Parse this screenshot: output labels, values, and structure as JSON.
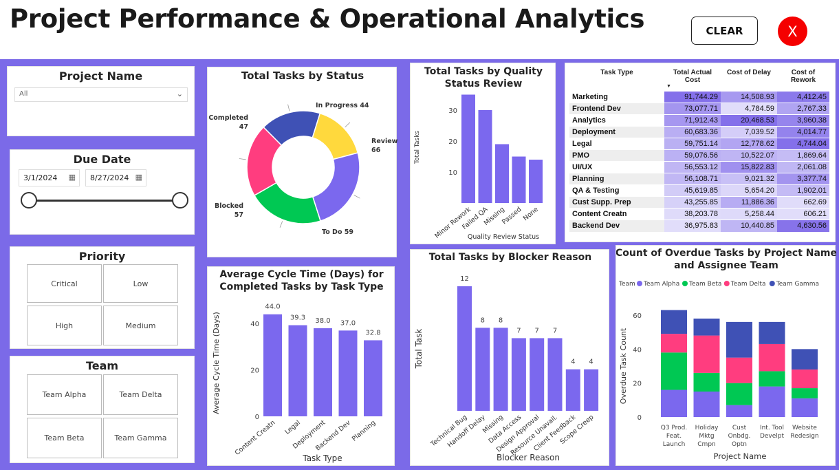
{
  "header": {
    "title": "Project Performance & Operational Analytics",
    "clear_label": "CLEAR",
    "close_label": "X"
  },
  "colors": {
    "accent": "#7b6ae8",
    "bar": "#7b68ee",
    "alpha": "#7b68ee",
    "beta": "#00c853",
    "delta": "#ff3d7f",
    "gamma": "#3f51b5",
    "close": "#f50000"
  },
  "slicers": {
    "project": {
      "title": "Project Name",
      "value": "All"
    },
    "due_date": {
      "title": "Due Date",
      "start": "3/1/2024",
      "end": "8/27/2024"
    },
    "priority": {
      "title": "Priority",
      "options": [
        "Critical",
        "Low",
        "High",
        "Medium"
      ]
    },
    "team": {
      "title": "Team",
      "options": [
        "Team Alpha",
        "Team Delta",
        "Team Beta",
        "Team Gamma"
      ]
    }
  },
  "matrix": {
    "headers": [
      "Task Type",
      "Total Actual Cost",
      "Cost of Delay",
      "Cost of Rework"
    ],
    "rows": [
      [
        "Marketing",
        "91,744.29",
        "14,508.93",
        "4,412.45"
      ],
      [
        "Frontend Dev",
        "73,077.71",
        "4,784.59",
        "2,767.33"
      ],
      [
        "Analytics",
        "71,912.43",
        "20,468.53",
        "3,960.38"
      ],
      [
        "Deployment",
        "60,683.36",
        "7,039.52",
        "4,014.77"
      ],
      [
        "Legal",
        "59,751.14",
        "12,778.62",
        "4,744.04"
      ],
      [
        "PMO",
        "59,076.56",
        "10,522.07",
        "1,869.64"
      ],
      [
        "UI/UX",
        "56,553.12",
        "15,822.83",
        "2,061.08"
      ],
      [
        "Planning",
        "56,108.71",
        "9,021.32",
        "3,377.74"
      ],
      [
        "QA & Testing",
        "45,619.85",
        "5,654.20",
        "1,902.01"
      ],
      [
        "Cust Supp. Prep",
        "43,255.85",
        "11,886.36",
        "662.69"
      ],
      [
        "Content Creatn",
        "38,203.78",
        "5,258.44",
        "606.21"
      ],
      [
        "Backend Dev",
        "36,975.83",
        "10,440.85",
        "4,630.56"
      ]
    ]
  },
  "chart_data": [
    {
      "id": "status",
      "type": "pie",
      "title": "Total Tasks by Status",
      "slices": [
        {
          "label": "In Progress",
          "value": 44,
          "color": "#ffd93d"
        },
        {
          "label": "Review",
          "value": 66,
          "color": "#7b68ee"
        },
        {
          "label": "To Do",
          "value": 59,
          "color": "#00c853"
        },
        {
          "label": "Blocked",
          "value": 57,
          "color": "#ff3d7f"
        },
        {
          "label": "Completed",
          "value": 47,
          "color": "#3f51b5"
        }
      ]
    },
    {
      "id": "quality",
      "type": "bar",
      "title": "Total Tasks by Quality Status Review",
      "xlabel": "Quality Review Status",
      "ylabel": "Total Tasks",
      "categories": [
        "Minor Rework",
        "Failed QA",
        "Missing",
        "Passed",
        "None"
      ],
      "values": [
        35,
        30,
        19,
        15,
        14
      ],
      "ylim": [
        0,
        36
      ],
      "yticks": [
        10,
        20,
        30
      ]
    },
    {
      "id": "cycle",
      "type": "bar",
      "title": "Average Cycle Time (Days) for Completed Tasks by Task Type",
      "xlabel": "Task Type",
      "ylabel": "Average Cycle Time (Days)",
      "categories": [
        "Content Creatn",
        "Legal",
        "Deployment",
        "Backend Dev",
        "Planning"
      ],
      "values": [
        44.0,
        39.3,
        38.0,
        37.0,
        32.8
      ],
      "labels": [
        "44.0",
        "39.3",
        "38.0",
        "37.0",
        "32.8"
      ],
      "ylim": [
        0,
        46
      ],
      "yticks": [
        0,
        20,
        40
      ]
    },
    {
      "id": "blocker",
      "type": "bar",
      "title": "Total Tasks by Blocker Reason",
      "xlabel": "Blocker Reason",
      "ylabel": "Total Task",
      "categories": [
        "Technical Bug",
        "Handoff Delay",
        "Missing",
        "Data Access",
        "Design Approval",
        "Resource Unavail.",
        "Client Feedback",
        "Scope Creep"
      ],
      "values": [
        12,
        8,
        8,
        7,
        7,
        7,
        4,
        4
      ],
      "ylim": [
        0,
        12
      ]
    },
    {
      "id": "overdue",
      "type": "bar",
      "stacked": true,
      "title": "Count of Overdue Tasks by Project Name and Assignee Team",
      "xlabel": "Project Name",
      "ylabel": "Overdue Task Count",
      "legend_title": "Team",
      "categories": [
        "Q3 Prod. Feat. Launch",
        "Holiday Mktg Cmpn",
        "Cust Onbdg. Optn",
        "Int. Tool Develpt",
        "Website Redesign"
      ],
      "category_lines": [
        [
          "Q3 Prod.",
          "Feat.",
          "Launch"
        ],
        [
          "Holiday",
          "Mktg",
          "Cmpn"
        ],
        [
          "Cust",
          "Onbdg.",
          "Optn"
        ],
        [
          "Int. Tool",
          "Develpt"
        ],
        [
          "Website",
          "Redesign"
        ]
      ],
      "series": [
        {
          "name": "Team Alpha",
          "color": "#7b68ee",
          "values": [
            16,
            15,
            7,
            18,
            11
          ]
        },
        {
          "name": "Team Beta",
          "color": "#00c853",
          "values": [
            22,
            11,
            13,
            9,
            6
          ]
        },
        {
          "name": "Team Delta",
          "color": "#ff3d7f",
          "values": [
            11,
            22,
            15,
            16,
            11
          ]
        },
        {
          "name": "Team Gamma",
          "color": "#3f51b5",
          "values": [
            14,
            10,
            21,
            13,
            12
          ]
        }
      ],
      "ylim": [
        0,
        65
      ],
      "yticks": [
        0,
        20,
        40,
        60
      ]
    }
  ]
}
